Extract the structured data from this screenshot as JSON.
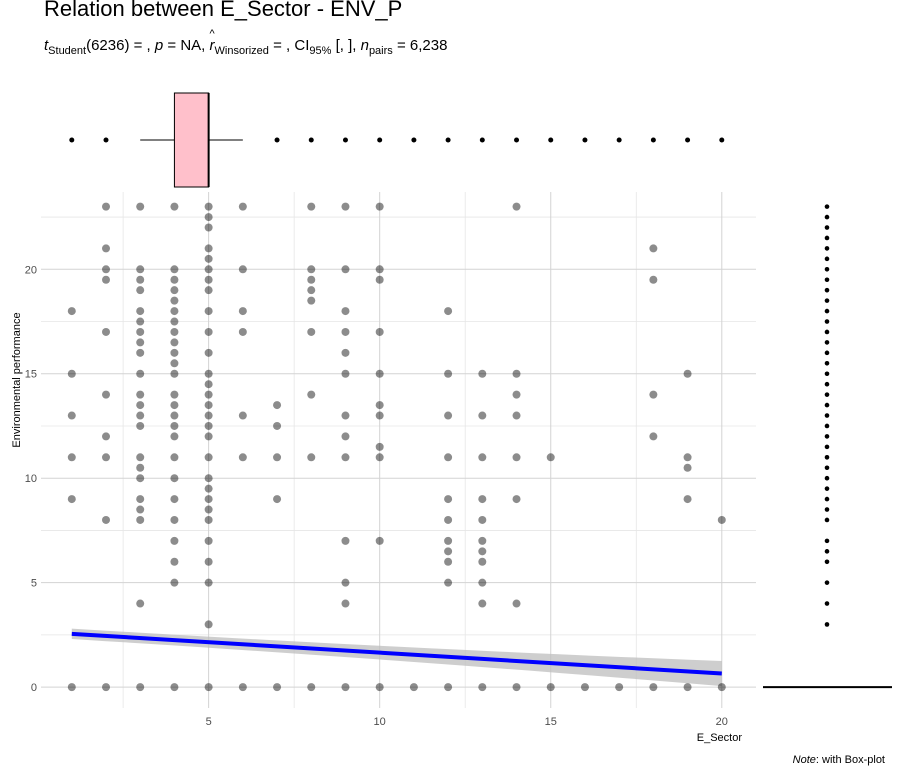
{
  "title": "Relation between E_Sector - ENV_P",
  "subtitle": {
    "t_label": "t",
    "t_sub": "Student",
    "t_df": "(6236) = ,",
    "p_label": "p",
    "p_val": "= NA,",
    "r_label": "r",
    "r_sub": "Winsorized",
    "r_val": "= ,",
    "ci_label": "CI",
    "ci_sub": "95%",
    "ci_val": "[, ],",
    "n_label": "n",
    "n_sub": "pairs",
    "n_val": "= 6,238"
  },
  "caption": {
    "note_label": "Note",
    "note_text": ": with Box-plot"
  },
  "chart_data": {
    "type": "scatter",
    "xlabel": "E_Sector",
    "ylabel": "Environmental performance",
    "xlim": [
      0.1,
      21
    ],
    "ylim": [
      -1.0,
      23.7
    ],
    "xticks": [
      5,
      10,
      15,
      20
    ],
    "yticks": [
      0,
      5,
      10,
      15,
      20
    ],
    "grid": true,
    "points": [
      [
        1,
        0
      ],
      [
        1,
        9
      ],
      [
        1,
        11
      ],
      [
        1,
        13
      ],
      [
        1,
        15
      ],
      [
        1,
        18
      ],
      [
        2,
        0
      ],
      [
        2,
        8
      ],
      [
        2,
        11
      ],
      [
        2,
        12
      ],
      [
        2,
        14
      ],
      [
        2,
        17
      ],
      [
        2,
        19.5
      ],
      [
        2,
        20
      ],
      [
        2,
        21
      ],
      [
        2,
        23
      ],
      [
        3,
        0
      ],
      [
        3,
        4
      ],
      [
        3,
        8
      ],
      [
        3,
        8.5
      ],
      [
        3,
        9
      ],
      [
        3,
        10
      ],
      [
        3,
        10.5
      ],
      [
        3,
        11
      ],
      [
        3,
        12.5
      ],
      [
        3,
        13
      ],
      [
        3,
        13.5
      ],
      [
        3,
        14
      ],
      [
        3,
        15
      ],
      [
        3,
        16
      ],
      [
        3,
        16.5
      ],
      [
        3,
        17
      ],
      [
        3,
        17.5
      ],
      [
        3,
        18
      ],
      [
        3,
        19
      ],
      [
        3,
        19.5
      ],
      [
        3,
        20
      ],
      [
        3,
        23
      ],
      [
        4,
        0
      ],
      [
        4,
        5
      ],
      [
        4,
        6
      ],
      [
        4,
        7
      ],
      [
        4,
        8
      ],
      [
        4,
        9
      ],
      [
        4,
        10
      ],
      [
        4,
        11
      ],
      [
        4,
        12
      ],
      [
        4,
        12.5
      ],
      [
        4,
        13
      ],
      [
        4,
        13.5
      ],
      [
        4,
        14
      ],
      [
        4,
        15
      ],
      [
        4,
        15.5
      ],
      [
        4,
        16
      ],
      [
        4,
        16.5
      ],
      [
        4,
        17
      ],
      [
        4,
        17.5
      ],
      [
        4,
        18
      ],
      [
        4,
        18.5
      ],
      [
        4,
        19
      ],
      [
        4,
        19.5
      ],
      [
        4,
        20
      ],
      [
        4,
        23
      ],
      [
        5,
        0
      ],
      [
        5,
        3
      ],
      [
        5,
        5
      ],
      [
        5,
        6
      ],
      [
        5,
        7
      ],
      [
        5,
        8
      ],
      [
        5,
        8.5
      ],
      [
        5,
        9
      ],
      [
        5,
        9.5
      ],
      [
        5,
        10
      ],
      [
        5,
        11
      ],
      [
        5,
        12
      ],
      [
        5,
        12.5
      ],
      [
        5,
        13
      ],
      [
        5,
        13.5
      ],
      [
        5,
        14
      ],
      [
        5,
        14.5
      ],
      [
        5,
        15
      ],
      [
        5,
        16
      ],
      [
        5,
        17
      ],
      [
        5,
        18
      ],
      [
        5,
        19
      ],
      [
        5,
        19.5
      ],
      [
        5,
        20
      ],
      [
        5,
        20.5
      ],
      [
        5,
        21
      ],
      [
        5,
        22
      ],
      [
        5,
        22.5
      ],
      [
        5,
        23
      ],
      [
        6,
        0
      ],
      [
        6,
        11
      ],
      [
        6,
        13
      ],
      [
        6,
        17
      ],
      [
        6,
        18
      ],
      [
        6,
        20
      ],
      [
        6,
        23
      ],
      [
        7,
        0
      ],
      [
        7,
        9
      ],
      [
        7,
        11
      ],
      [
        7,
        12.5
      ],
      [
        7,
        13.5
      ],
      [
        8,
        0
      ],
      [
        8,
        11
      ],
      [
        8,
        14
      ],
      [
        8,
        17
      ],
      [
        8,
        18.5
      ],
      [
        8,
        19
      ],
      [
        8,
        19.5
      ],
      [
        8,
        20
      ],
      [
        8,
        23
      ],
      [
        9,
        0
      ],
      [
        9,
        4
      ],
      [
        9,
        5
      ],
      [
        9,
        7
      ],
      [
        9,
        11
      ],
      [
        9,
        12
      ],
      [
        9,
        13
      ],
      [
        9,
        15
      ],
      [
        9,
        16
      ],
      [
        9,
        17
      ],
      [
        9,
        18
      ],
      [
        9,
        20
      ],
      [
        9,
        23
      ],
      [
        10,
        0
      ],
      [
        10,
        7
      ],
      [
        10,
        11
      ],
      [
        10,
        11.5
      ],
      [
        10,
        13
      ],
      [
        10,
        13.5
      ],
      [
        10,
        15
      ],
      [
        10,
        17
      ],
      [
        10,
        19.5
      ],
      [
        10,
        20
      ],
      [
        10,
        23
      ],
      [
        11,
        0
      ],
      [
        12,
        0
      ],
      [
        12,
        5
      ],
      [
        12,
        6
      ],
      [
        12,
        6.5
      ],
      [
        12,
        7
      ],
      [
        12,
        8
      ],
      [
        12,
        9
      ],
      [
        12,
        11
      ],
      [
        12,
        13
      ],
      [
        12,
        15
      ],
      [
        12,
        18
      ],
      [
        13,
        0
      ],
      [
        13,
        4
      ],
      [
        13,
        5
      ],
      [
        13,
        6
      ],
      [
        13,
        6.5
      ],
      [
        13,
        7
      ],
      [
        13,
        8
      ],
      [
        13,
        9
      ],
      [
        13,
        11
      ],
      [
        13,
        13
      ],
      [
        13,
        15
      ],
      [
        14,
        0
      ],
      [
        14,
        4
      ],
      [
        14,
        9
      ],
      [
        14,
        11
      ],
      [
        14,
        13
      ],
      [
        14,
        14
      ],
      [
        14,
        15
      ],
      [
        14,
        23
      ],
      [
        15,
        0
      ],
      [
        15,
        11
      ],
      [
        16,
        0
      ],
      [
        17,
        0
      ],
      [
        18,
        0
      ],
      [
        18,
        12
      ],
      [
        18,
        14
      ],
      [
        18,
        19.5
      ],
      [
        18,
        21
      ],
      [
        19,
        0
      ],
      [
        19,
        9
      ],
      [
        19,
        10.5
      ],
      [
        19,
        11
      ],
      [
        19,
        15
      ],
      [
        20,
        0
      ],
      [
        20,
        8
      ]
    ],
    "regression": {
      "x": [
        1,
        20
      ],
      "y": [
        2.55,
        0.65
      ],
      "ci_halfwidth_start": 0.25,
      "ci_halfwidth_end": 0.6
    },
    "x_boxplot": {
      "q1": 4,
      "median": 5,
      "q3": 5,
      "whisker_low": 3,
      "whisker_high": 6,
      "outliers": [
        1,
        2,
        7,
        8,
        9,
        10,
        11,
        12,
        13,
        14,
        15,
        16,
        17,
        18,
        19,
        20
      ],
      "fill": "#ffc0cb"
    },
    "y_boxplot": {
      "q1": 0,
      "median": 0,
      "q3": 0,
      "whisker_low": 0,
      "whisker_high": 0,
      "outliers": [
        3,
        4,
        5,
        6,
        6.5,
        7,
        8,
        8.5,
        9,
        9.5,
        10,
        10.5,
        11,
        11.5,
        12,
        12.5,
        13,
        13.5,
        14,
        14.5,
        15,
        15.5,
        16,
        16.5,
        17,
        17.5,
        18,
        18.5,
        19,
        19.5,
        20,
        20.5,
        21,
        21.5,
        22,
        22.5,
        23
      ]
    },
    "colors": {
      "point": "#000000",
      "line": "#0000ff",
      "band": "#bebebe",
      "grid": "#d3d3d3",
      "box": "#ffc0cb"
    }
  }
}
